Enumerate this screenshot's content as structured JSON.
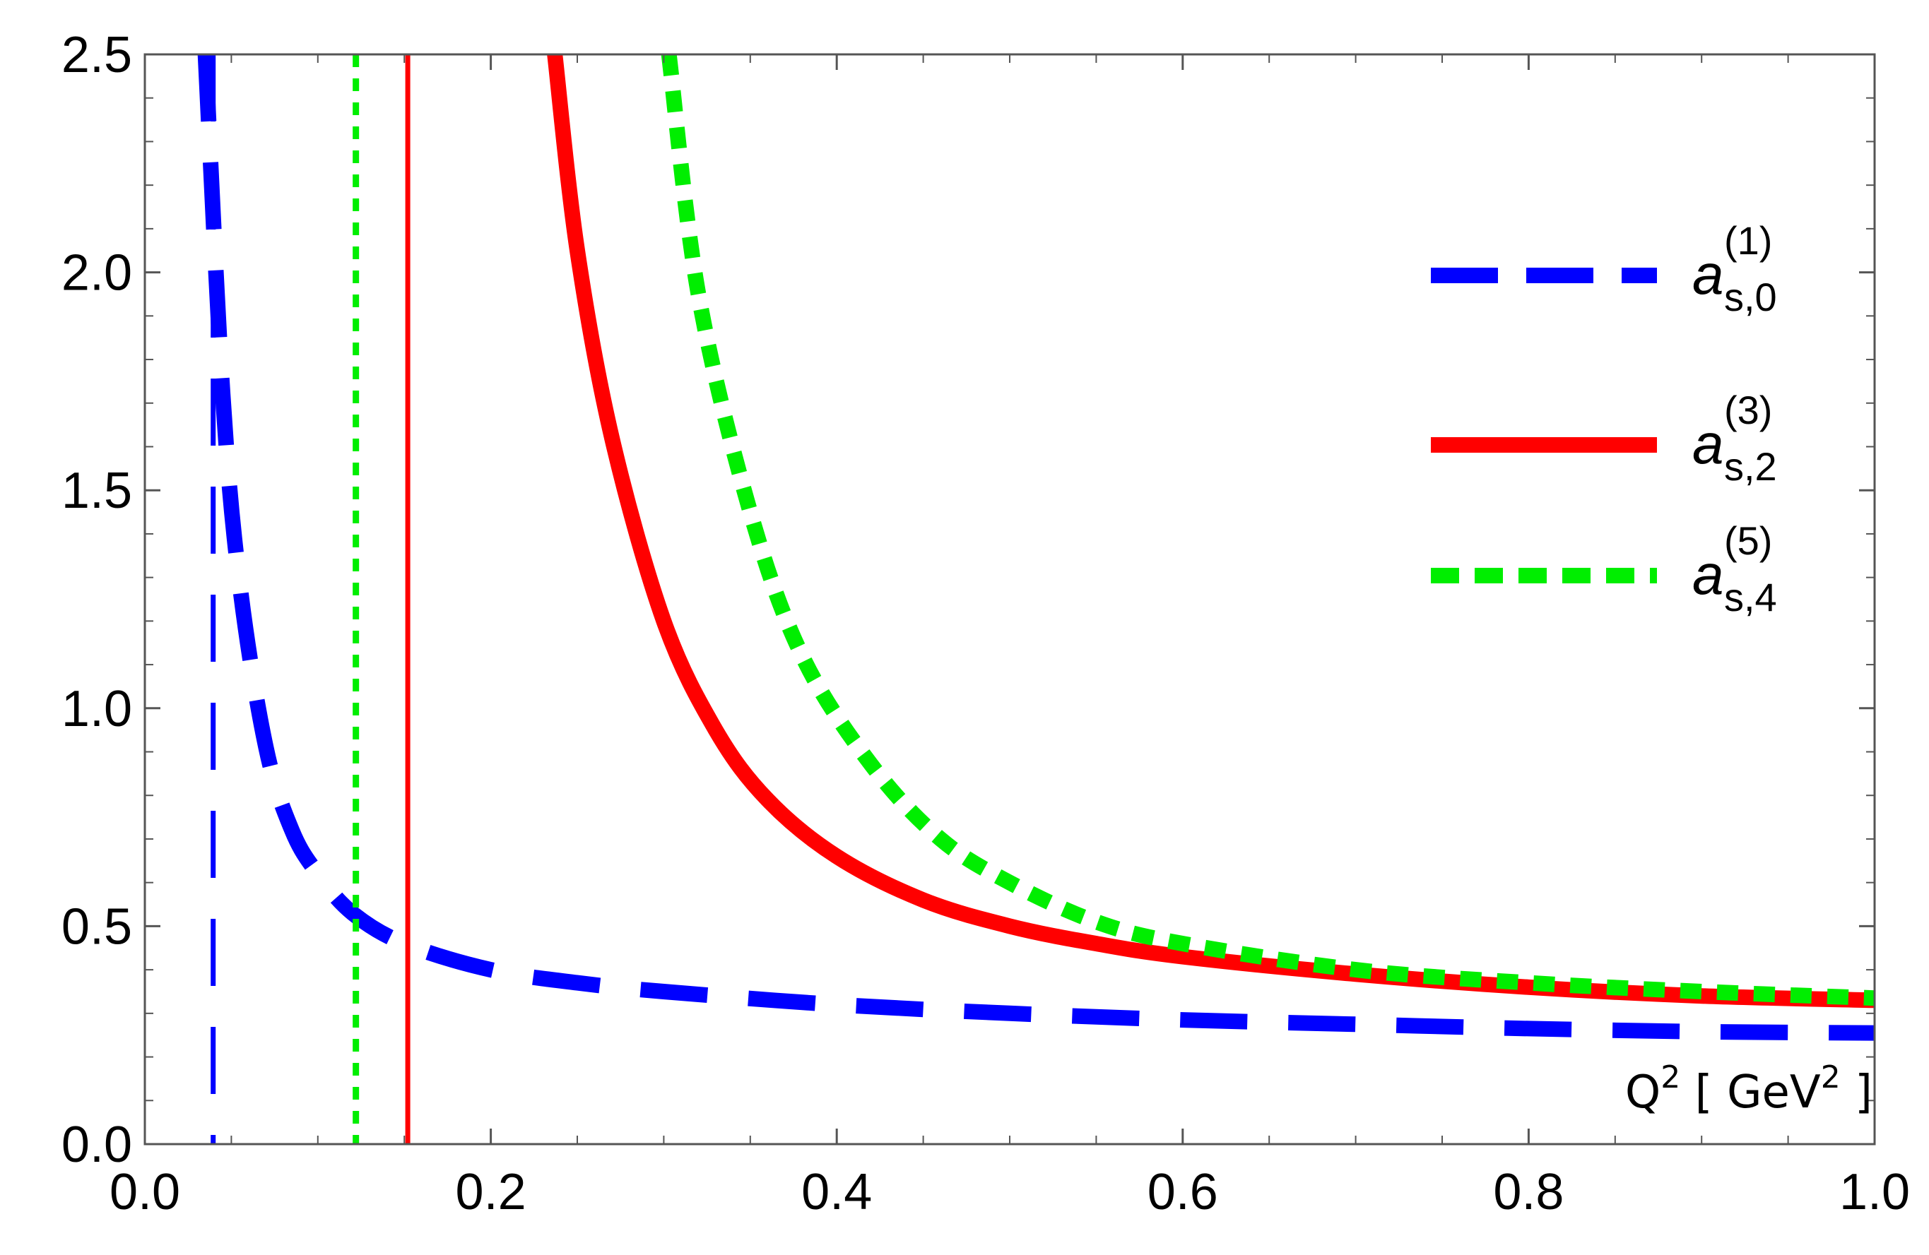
{
  "chart_data": {
    "type": "line",
    "xlim": [
      0.0,
      1.0
    ],
    "ylim": [
      0.0,
      2.5
    ],
    "grid": false,
    "legend_position": "top-right",
    "x_axis_label": {
      "base": "Q",
      "sup": "2",
      "unit_open": "[",
      "unit": "GeV",
      "unit_sup": "2",
      "unit_close": "]"
    },
    "x_ticks": [
      {
        "value": 0.0,
        "label": "0.0"
      },
      {
        "value": 0.2,
        "label": "0.2"
      },
      {
        "value": 0.4,
        "label": "0.4"
      },
      {
        "value": 0.6,
        "label": "0.6"
      },
      {
        "value": 0.8,
        "label": "0.8"
      },
      {
        "value": 1.0,
        "label": "1.0"
      }
    ],
    "y_ticks": [
      {
        "value": 0.0,
        "label": "0.0"
      },
      {
        "value": 0.5,
        "label": "0.5"
      },
      {
        "value": 1.0,
        "label": "1.0"
      },
      {
        "value": 1.5,
        "label": "1.5"
      },
      {
        "value": 2.0,
        "label": "2.0"
      },
      {
        "value": 2.5,
        "label": "2.5"
      }
    ],
    "series": [
      {
        "id": "s1",
        "legend": {
          "base": "a",
          "sub": "s,0",
          "sup": "(1)"
        },
        "color": "#0000ff",
        "style": "long-dash",
        "x": [
          0.035,
          0.045,
          0.055,
          0.07,
          0.085,
          0.1,
          0.12,
          0.15,
          0.2,
          0.25,
          0.3,
          0.4,
          0.5,
          0.6,
          0.7,
          0.8,
          0.9,
          1.0
        ],
        "y": [
          2.5,
          1.72,
          1.28,
          0.91,
          0.72,
          0.62,
          0.53,
          0.46,
          0.4,
          0.37,
          0.35,
          0.32,
          0.3,
          0.285,
          0.275,
          0.265,
          0.258,
          0.255
        ],
        "pole": {
          "x": 0.0395,
          "style": "long-dash-thin"
        }
      },
      {
        "id": "s2",
        "legend": {
          "base": "a",
          "sub": "s,2",
          "sup": "(3)"
        },
        "color": "#ff0000",
        "style": "solid",
        "x": [
          0.237,
          0.25,
          0.27,
          0.3,
          0.33,
          0.36,
          0.4,
          0.45,
          0.5,
          0.55,
          0.6,
          0.7,
          0.8,
          0.9,
          1.0
        ],
        "y": [
          2.5,
          2.05,
          1.62,
          1.2,
          0.95,
          0.79,
          0.66,
          0.56,
          0.5,
          0.46,
          0.43,
          0.39,
          0.36,
          0.34,
          0.33
        ],
        "pole": {
          "x": 0.152,
          "style": "solid-thin"
        }
      },
      {
        "id": "s3",
        "legend": {
          "base": "a",
          "sub": "s,4",
          "sup": "(5)"
        },
        "color": "#00ee00",
        "style": "dotted",
        "x": [
          0.303,
          0.32,
          0.35,
          0.38,
          0.42,
          0.46,
          0.5,
          0.55,
          0.6,
          0.7,
          0.8,
          0.9,
          1.0
        ],
        "y": [
          2.5,
          1.95,
          1.45,
          1.12,
          0.87,
          0.7,
          0.6,
          0.51,
          0.46,
          0.4,
          0.37,
          0.35,
          0.335
        ],
        "pole": {
          "x": 0.122,
          "style": "dotted-thin"
        }
      }
    ]
  }
}
